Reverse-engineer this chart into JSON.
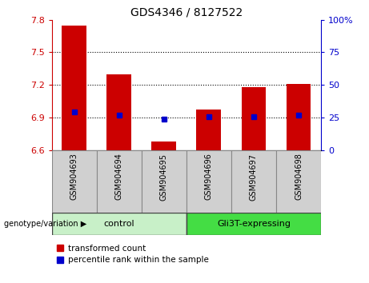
{
  "title": "GDS4346 / 8127522",
  "categories": [
    "GSM904693",
    "GSM904694",
    "GSM904695",
    "GSM904696",
    "GSM904697",
    "GSM904698"
  ],
  "bar_tops": [
    7.75,
    7.3,
    6.68,
    6.97,
    7.18,
    7.21
  ],
  "bar_color": "#cc0000",
  "bar_bottom": 6.6,
  "blue_marker_y": [
    6.95,
    6.92,
    6.885,
    6.905,
    6.91,
    6.92
  ],
  "marker_color": "#0000cc",
  "ylim_left": [
    6.6,
    7.8
  ],
  "ylim_right": [
    0,
    100
  ],
  "yticks_left": [
    6.6,
    6.9,
    7.2,
    7.5,
    7.8
  ],
  "yticks_right": [
    0,
    25,
    50,
    75,
    100
  ],
  "ytick_labels_right": [
    "0",
    "25",
    "50",
    "75",
    "100%"
  ],
  "hlines": [
    6.9,
    7.2,
    7.5
  ],
  "control_indices": [
    0,
    1,
    2
  ],
  "gli3t_indices": [
    3,
    4,
    5
  ],
  "control_label": "control",
  "gli3t_label": "Gli3T-expressing",
  "control_color": "#c8f0c8",
  "gli3t_color": "#44dd44",
  "tick_bg_color": "#d0d0d0",
  "group_label_prefix": "genotype/variation",
  "legend_items": [
    {
      "label": "transformed count",
      "color": "#cc0000"
    },
    {
      "label": "percentile rank within the sample",
      "color": "#0000cc"
    }
  ],
  "axis_color_left": "#cc0000",
  "axis_color_right": "#0000cc",
  "bar_width": 0.55,
  "plot_bg_color": "#ffffff"
}
